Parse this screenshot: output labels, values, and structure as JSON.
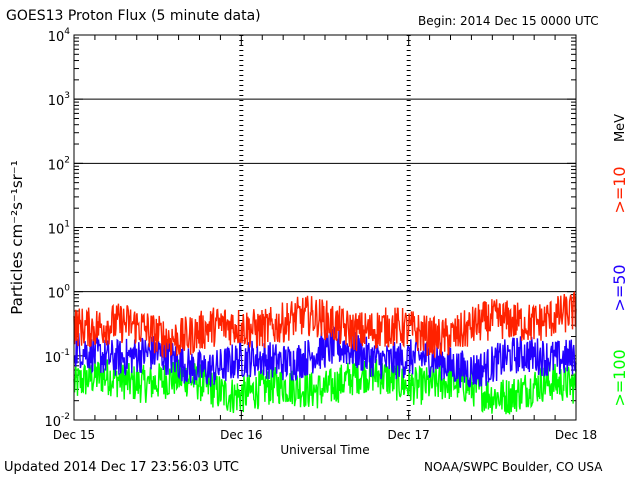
{
  "header": {
    "title": "GOES13 Proton Flux (5 minute data)",
    "begin": "Begin: 2014 Dec 15 0000 UTC"
  },
  "footer": {
    "updated": "Updated 2014 Dec 17 23:56:03 UTC",
    "credit": "NOAA/SWPC Boulder, CO USA"
  },
  "chart_data": {
    "type": "line",
    "title": "GOES13 Proton Flux (5 minute data)",
    "xlabel": "Universal Time",
    "ylabel": "Particles cm⁻²s⁻¹sr⁻¹",
    "yscale": "log",
    "ylim": [
      0.01,
      10000
    ],
    "xlim_days": [
      0,
      3
    ],
    "x_ticks": [
      "Dec 15",
      "Dec 16",
      "Dec 17",
      "Dec 18"
    ],
    "y_ticks": [
      {
        "base": "10",
        "exp": "4",
        "value": 10000
      },
      {
        "base": "10",
        "exp": "3",
        "value": 1000
      },
      {
        "base": "10",
        "exp": "2",
        "value": 100
      },
      {
        "base": "10",
        "exp": "1",
        "value": 10
      },
      {
        "base": "10",
        "exp": "0",
        "value": 1
      },
      {
        "base": "10",
        "exp": "-1",
        "value": 0.1
      },
      {
        "base": "10",
        "exp": "-2",
        "value": 0.01
      }
    ],
    "threshold_lines": [
      {
        "value": 1000,
        "style": "solid"
      },
      {
        "value": 100,
        "style": "solid"
      },
      {
        "value": 10,
        "style": "dashed"
      },
      {
        "value": 1,
        "style": "solid"
      }
    ],
    "unit_label": "MeV",
    "series": [
      {
        "name": ">=10",
        "color": "#ff2200",
        "base": 0.28,
        "amplitude": 0.32
      },
      {
        "name": ">=50",
        "color": "#2200ff",
        "base": 0.09,
        "amplitude": 0.3
      },
      {
        "name": ">=100",
        "color": "#00ff00",
        "base": 0.035,
        "amplitude": 0.3
      }
    ]
  }
}
